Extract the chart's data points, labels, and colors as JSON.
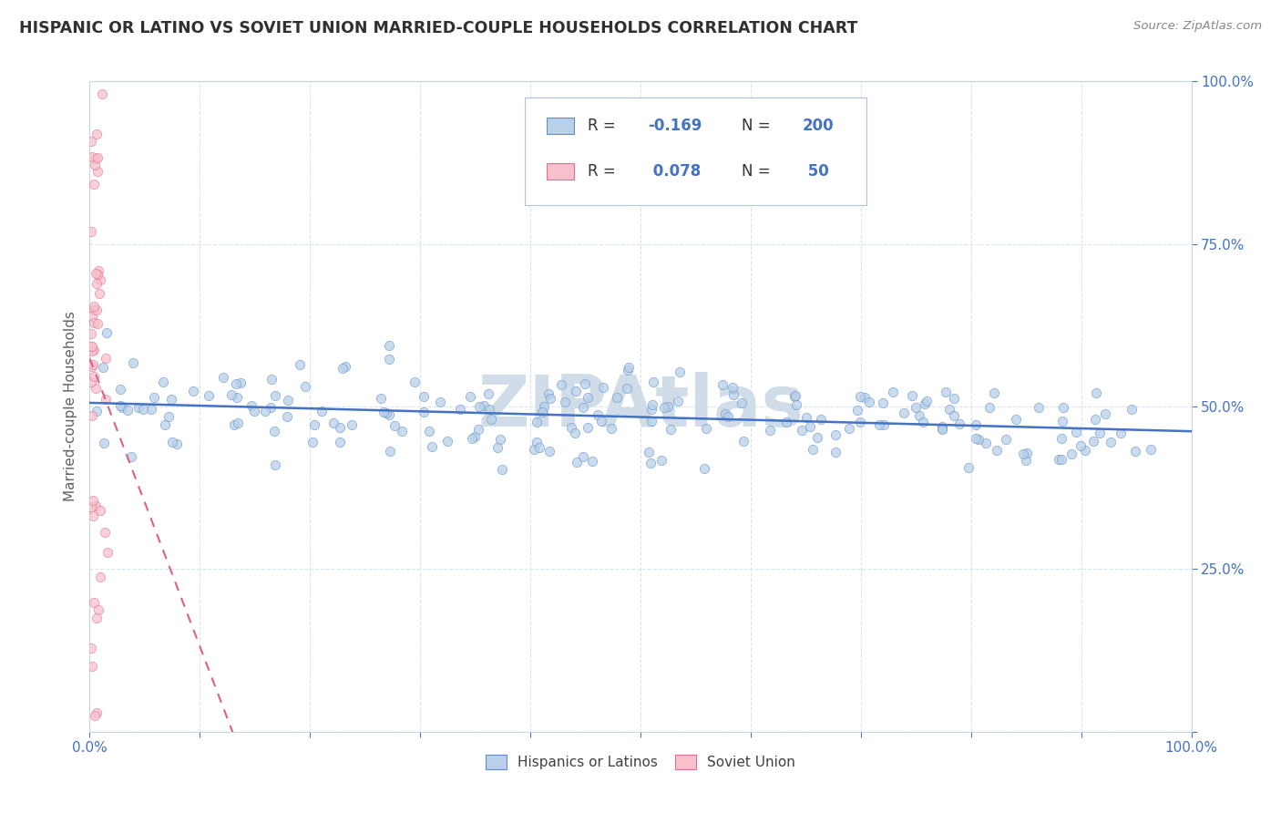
{
  "title": "HISPANIC OR LATINO VS SOVIET UNION MARRIED-COUPLE HOUSEHOLDS CORRELATION CHART",
  "source": "Source: ZipAtlas.com",
  "ylabel": "Married-couple Households",
  "legend_label_blue": "Hispanics or Latinos",
  "legend_label_pink": "Soviet Union",
  "R_blue": -0.169,
  "N_blue": 200,
  "R_pink": 0.078,
  "N_pink": 50,
  "xlim": [
    0.0,
    1.0
  ],
  "ylim": [
    0.0,
    1.0
  ],
  "blue_color": "#b8d0e8",
  "blue_edge_color": "#6090c8",
  "blue_line_color": "#4472c4",
  "pink_color": "#f8c0cc",
  "pink_edge_color": "#e07090",
  "pink_line_color": "#e06080",
  "watermark": "ZIPAtlas",
  "watermark_color": "#d0dce8",
  "title_color": "#303030",
  "axis_label_color": "#606060",
  "tick_color": "#4472c4",
  "grid_color": "#d8e4f0",
  "grid_linestyle": "--",
  "legend_box_color": "#e8f0f8",
  "legend_edge_color": "#b0c0d8"
}
